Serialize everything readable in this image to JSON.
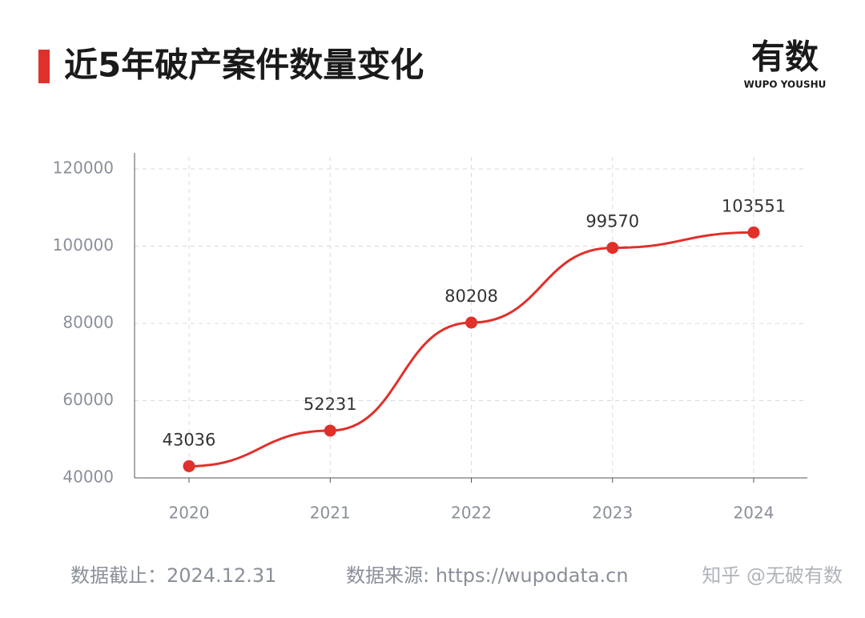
{
  "chart_data": {
    "type": "line",
    "title": "近5年破产案件数量变化",
    "logo": "有数",
    "logo_subtitle": "WUPO YOUSHU",
    "footer_date": "数据截止：2024.12.31",
    "footer_source": "数据来源: https://wupodata.cn",
    "watermark": "知乎 @无破有数",
    "categories": [
      "2020",
      "2021",
      "2022",
      "2023",
      "2024"
    ],
    "values": [
      43036,
      52231,
      80208,
      99570,
      103551
    ],
    "color": "#e0302a",
    "ylim": [
      40000,
      120000
    ],
    "yticks": [
      40000,
      60000,
      80000,
      100000,
      120000
    ],
    "grid": true
  }
}
